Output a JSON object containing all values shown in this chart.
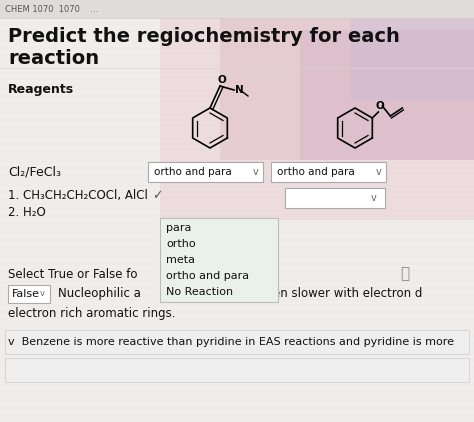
{
  "title_line1": "Predict the regiochemistry for each",
  "title_line2": "reaction",
  "reagents_label": "Reagents",
  "reagent1_label": "Cl₂/FeCl₃",
  "row1_label": "1. CH₃CH₂CH₂COCl, AlCl",
  "row1_check": "✓",
  "row2_label": "2. H₂O",
  "select_label": "Select True or False fo",
  "false_label": "False",
  "false_arrow": "⌄",
  "nucleophilic_label": "Nucleophilic a",
  "reactions_label": "reactions happen slower with electron d",
  "electron_label": "electron rich aromatic rings.",
  "benzene_label": "Benzene is more reactive than pyridine in EAS reactions and pyridine is more",
  "dropdown1_text": "ortho and para",
  "dropdown2_text": "ortho and para",
  "dropdown_arrow": "⌄",
  "popup_items": [
    "para",
    "ortho",
    "meta",
    "ortho and para",
    "No Reaction"
  ],
  "bg_color": "#f0eeec",
  "bg_pink_color": "#e8c8cc",
  "bg_stripe_color": "#ddd8d8",
  "header_bg": "#e8e4e2",
  "header_text": "CHEM 1070",
  "white": "#ffffff",
  "border_color": "#aaaaaa",
  "text_color": "#111111",
  "gray_text": "#666666",
  "popup_bg": "#eaf0ea",
  "popup_border": "#bbbbbb",
  "title_fontsize": 14,
  "body_fontsize": 8.5,
  "small_fontsize": 7.5
}
